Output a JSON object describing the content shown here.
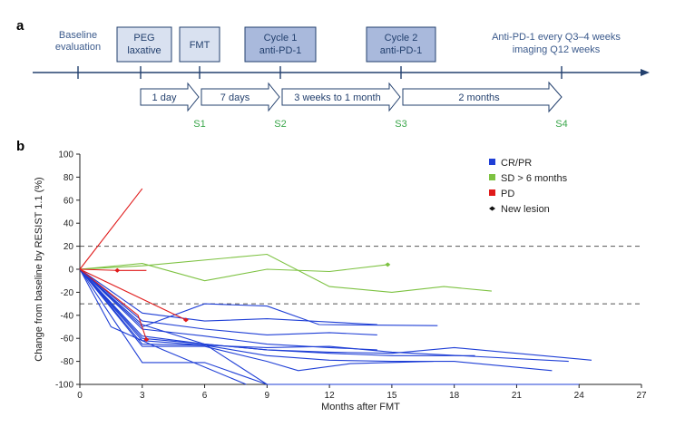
{
  "panel_a": {
    "label": "a",
    "baseline": "Baseline evaluation",
    "baseline_lines": [
      "Baseline",
      "evaluation"
    ],
    "boxes": [
      {
        "lines": [
          "PEG",
          "laxative"
        ],
        "fill": "#d9e1f0"
      },
      {
        "lines": [
          "FMT"
        ],
        "fill": "#d9e1f0"
      },
      {
        "lines": [
          "Cycle 1",
          "anti-PD-1"
        ],
        "fill": "#a9b9dc"
      },
      {
        "lines": [
          "Cycle 2",
          "anti-PD-1"
        ],
        "fill": "#a9b9dc"
      }
    ],
    "right_note_lines": [
      "Anti-PD-1 every Q3–4 weeks",
      "imaging Q12 weeks"
    ],
    "intervals": [
      {
        "label": "1 day"
      },
      {
        "label": "7 days"
      },
      {
        "label": "3 weeks to 1 month"
      },
      {
        "label": "2 months"
      }
    ],
    "samples": [
      "S1",
      "S2",
      "S3",
      "S4"
    ],
    "colors": {
      "axis": "#23406e",
      "text": "#3b5a8c",
      "sample": "#3aa64a"
    }
  },
  "panel_b": {
    "label": "b",
    "chart_data": {
      "type": "line",
      "xlabel": "Months after FMT",
      "ylabel": "Change from baseline by RESIST 1.1 (%)",
      "xlim": [
        0,
        27
      ],
      "ylim": [
        -100,
        100
      ],
      "xticks": [
        0,
        3,
        6,
        9,
        12,
        15,
        18,
        21,
        24,
        27
      ],
      "yticks": [
        100,
        80,
        60,
        40,
        20,
        0,
        -20,
        -40,
        -60,
        -80,
        -100
      ],
      "reference_lines": [
        20,
        -30
      ],
      "legend": [
        {
          "label": "CR/PR",
          "color": "#1f3fd6",
          "marker": "square"
        },
        {
          "label": "SD > 6 months",
          "color": "#7dc241",
          "marker": "square"
        },
        {
          "label": "PD",
          "color": "#e01b1b",
          "marker": "square"
        },
        {
          "label": "New lesion",
          "color": "#111111",
          "marker": "diamond"
        }
      ],
      "legend_position": "top-right",
      "series": [
        {
          "group": "CR/PR",
          "x": [
            0,
            3,
            6,
            9,
            14.3
          ],
          "y": [
            0,
            -38,
            -45,
            -43,
            -48
          ]
        },
        {
          "group": "CR/PR",
          "x": [
            0,
            3,
            6,
            9,
            12,
            14.3
          ],
          "y": [
            0,
            -45,
            -52,
            -57,
            -55,
            -57
          ]
        },
        {
          "group": "CR/PR",
          "x": [
            0,
            3,
            6,
            9,
            11.5,
            17.2
          ],
          "y": [
            0,
            -50,
            -30,
            -32,
            -48,
            -49
          ]
        },
        {
          "group": "CR/PR",
          "x": [
            0,
            3,
            6,
            9,
            12,
            14.3
          ],
          "y": [
            0,
            -52,
            -58,
            -65,
            -68,
            -70
          ]
        },
        {
          "group": "CR/PR",
          "x": [
            0,
            3,
            6,
            9,
            12,
            15,
            19
          ],
          "y": [
            0,
            -58,
            -65,
            -70,
            -73,
            -75,
            -75
          ]
        },
        {
          "group": "CR/PR",
          "x": [
            0,
            3,
            6,
            9,
            12,
            15,
            18,
            24.6
          ],
          "y": [
            0,
            -60,
            -65,
            -70,
            -72,
            -73,
            -68,
            -79
          ]
        },
        {
          "group": "CR/PR",
          "x": [
            0,
            3,
            6,
            9,
            12,
            15,
            23.5
          ],
          "y": [
            0,
            -62,
            -66,
            -68,
            -67,
            -72,
            -80
          ]
        },
        {
          "group": "CR/PR",
          "x": [
            0,
            3,
            6,
            9,
            12,
            15,
            18,
            22.7
          ],
          "y": [
            0,
            -65,
            -66,
            -75,
            -79,
            -80,
            -80,
            -88
          ]
        },
        {
          "group": "CR/PR",
          "x": [
            0,
            3,
            6,
            9,
            10.5,
            13,
            17
          ],
          "y": [
            0,
            -67,
            -67,
            -80,
            -88,
            -82,
            -80
          ]
        },
        {
          "group": "CR/PR",
          "x": [
            0,
            3,
            6,
            9
          ],
          "y": [
            0,
            -81,
            -81,
            -100
          ]
        },
        {
          "group": "CR/PR",
          "x": [
            0,
            3,
            6,
            9,
            15,
            24
          ],
          "y": [
            0,
            -48,
            -65,
            -100,
            -100,
            -100
          ]
        },
        {
          "group": "CR/PR",
          "x": [
            0,
            1.5,
            4,
            8
          ],
          "y": [
            0,
            -50,
            -70,
            -100
          ]
        },
        {
          "group": "SD > 6 months",
          "x": [
            0,
            3,
            6,
            9,
            12,
            14.8
          ],
          "y": [
            0,
            5,
            -10,
            0,
            -2,
            4
          ],
          "new_lesion_at": 14.8
        },
        {
          "group": "SD > 6 months",
          "x": [
            0,
            3,
            9,
            12,
            15,
            17.5,
            19.8
          ],
          "y": [
            0,
            3,
            13,
            -15,
            -20,
            -15,
            -19
          ]
        },
        {
          "group": "PD",
          "x": [
            0,
            3
          ],
          "y": [
            0,
            70
          ]
        },
        {
          "group": "PD",
          "x": [
            0,
            1.8,
            3.2
          ],
          "y": [
            0,
            -1,
            -1
          ],
          "new_lesion_at": 1.8
        },
        {
          "group": "PD",
          "x": [
            0,
            5.1
          ],
          "y": [
            0,
            -44
          ],
          "new_lesion_at": 5.1
        },
        {
          "group": "PD",
          "x": [
            0,
            2.8,
            3.2
          ],
          "y": [
            0,
            -40,
            -61
          ],
          "new_lesion_at": 3.2
        }
      ]
    }
  }
}
